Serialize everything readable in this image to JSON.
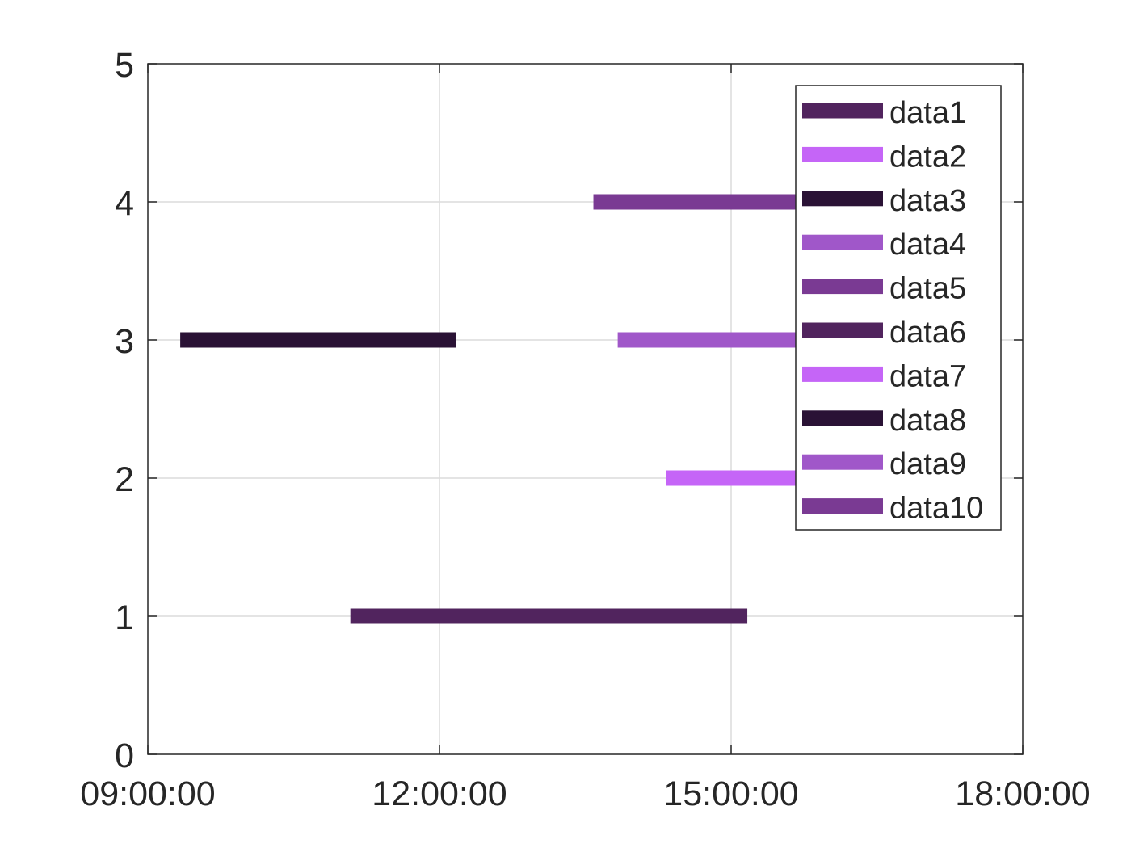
{
  "chart_data": {
    "type": "gantt",
    "title": "",
    "xlabel": "",
    "ylabel": "",
    "x_format": "HH:MM:SS",
    "xlim": [
      "09:00:00",
      "18:00:00"
    ],
    "ylim": [
      0,
      5
    ],
    "x_ticks": [
      "09:00:00",
      "12:00:00",
      "15:00:00",
      "18:00:00"
    ],
    "y_ticks": [
      "0",
      "1",
      "2",
      "3",
      "4",
      "5"
    ],
    "grid": true,
    "legend_position": "top-right",
    "series": [
      {
        "name": "data1",
        "color": "#51245e",
        "y": 1,
        "start": "11:05:00",
        "end": "15:10:00"
      },
      {
        "name": "data2",
        "color": "#c565f7",
        "y": null,
        "start": null,
        "end": null
      },
      {
        "name": "data3",
        "color": "#2a1235",
        "y": 3,
        "start": "09:20:00",
        "end": "12:10:00"
      },
      {
        "name": "data4",
        "color": "#a057c9",
        "y": 3,
        "start": "13:50:00",
        "end": "16:40:00"
      },
      {
        "name": "data5",
        "color": "#7a3a93",
        "y": 4,
        "start": "13:35:00",
        "end": "16:50:00"
      },
      {
        "name": "data6",
        "color": "#51245e",
        "y": null,
        "start": null,
        "end": null
      },
      {
        "name": "data7",
        "color": "#c565f7",
        "y": 2,
        "start": "14:20:00",
        "end": "16:30:00"
      },
      {
        "name": "data8",
        "color": "#2a1235",
        "y": null,
        "start": null,
        "end": null
      },
      {
        "name": "data9",
        "color": "#a057c9",
        "y": null,
        "start": null,
        "end": null
      },
      {
        "name": "data10",
        "color": "#7a3a93",
        "y": null,
        "start": null,
        "end": null
      }
    ]
  }
}
